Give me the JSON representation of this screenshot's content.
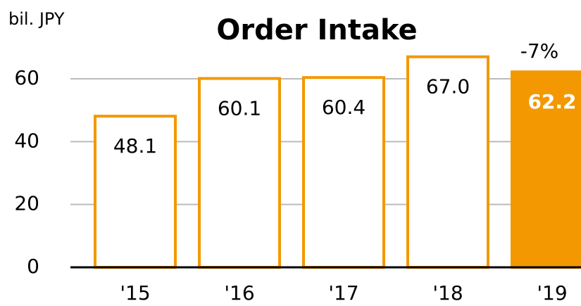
{
  "chart_data": {
    "type": "bar",
    "title": "Order Intake",
    "y_label": "bil. JPY",
    "annotation": "-7%",
    "categories": [
      "'15",
      "'16",
      "'17",
      "'18",
      "'19"
    ],
    "values": [
      48.1,
      60.1,
      60.4,
      67.0,
      62.2
    ],
    "value_labels": [
      "48.1",
      "60.1",
      "60.4",
      "67.0",
      "62.2"
    ],
    "color": "#f39800",
    "fills": [
      "#ffffff",
      "#ffffff",
      "#ffffff",
      "#ffffff",
      "#f39800"
    ],
    "ylim": [
      0,
      60
    ],
    "yticks": [
      0,
      20,
      40,
      60
    ],
    "grid": true
  }
}
